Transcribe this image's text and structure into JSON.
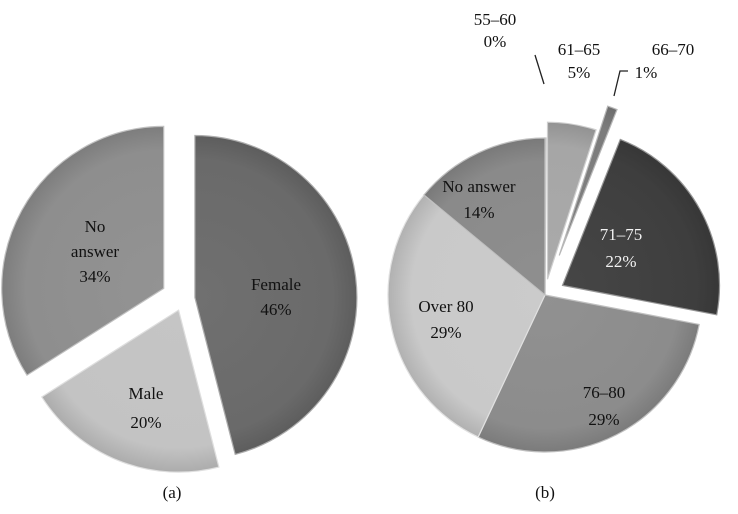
{
  "chart_data": [
    {
      "type": "pie",
      "caption": "(a)",
      "slices": [
        {
          "label": "Female",
          "value": 46,
          "value_text": "46%",
          "color": "#6a6a6a"
        },
        {
          "label": "Male",
          "value": 20,
          "value_text": "20%",
          "color": "#c3c3c3"
        },
        {
          "label": "No answer",
          "label_lines": [
            "No",
            "answer"
          ],
          "value": 34,
          "value_text": "34%",
          "color": "#8e8e8e"
        }
      ]
    },
    {
      "type": "pie",
      "caption": "(b)",
      "slices": [
        {
          "label": "55–60",
          "value": 0,
          "value_text": "0%",
          "color": "#b0b0b0"
        },
        {
          "label": "61–65",
          "value": 5,
          "value_text": "5%",
          "color": "#a6a6a6"
        },
        {
          "label": "66–70",
          "value": 1,
          "value_text": "1%",
          "color": "#7c7c7c"
        },
        {
          "label": "71–75",
          "value": 22,
          "value_text": "22%",
          "color": "#3e3e3e"
        },
        {
          "label": "76–80",
          "value": 29,
          "value_text": "29%",
          "color": "#8c8c8c"
        },
        {
          "label": "Over 80",
          "value": 29,
          "value_text": "29%",
          "color": "#c9c9c9"
        },
        {
          "label": "No answer",
          "value": 14,
          "value_text": "14%",
          "color": "#8a8a8a"
        }
      ]
    }
  ]
}
